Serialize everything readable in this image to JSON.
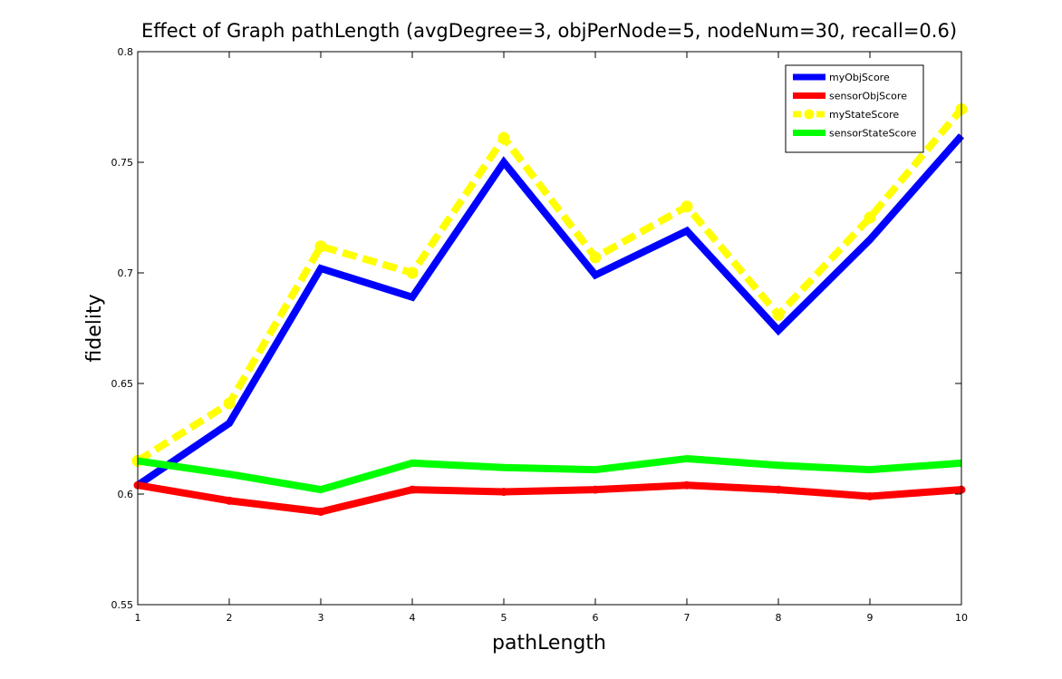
{
  "chart_data": {
    "type": "line",
    "title": "Effect of Graph pathLength (avgDegree=3, objPerNode=5, nodeNum=30, recall=0.6)",
    "xlabel": "pathLength",
    "ylabel": "fidelity",
    "x": [
      1,
      2,
      3,
      4,
      5,
      6,
      7,
      8,
      9,
      10
    ],
    "xlim": [
      1,
      10
    ],
    "ylim": [
      0.55,
      0.8
    ],
    "xticks": [
      1,
      2,
      3,
      4,
      5,
      6,
      7,
      8,
      9,
      10
    ],
    "xtick_labels": [
      "1",
      "2",
      "3",
      "4",
      "5",
      "6",
      "7",
      "8",
      "9",
      "10"
    ],
    "yticks": [
      0.55,
      0.6,
      0.65,
      0.7,
      0.75,
      0.8
    ],
    "ytick_labels": [
      "0.55",
      "0.6",
      "0.65",
      "0.7",
      "0.75",
      "0.8"
    ],
    "grid": false,
    "legend_position": "top-right",
    "series": [
      {
        "name": "myObjScore",
        "color": "#0000ff",
        "style": "solid",
        "marker": "none",
        "values": [
          0.604,
          0.632,
          0.702,
          0.689,
          0.75,
          0.699,
          0.719,
          0.674,
          0.715,
          0.762
        ]
      },
      {
        "name": "sensorObjScore",
        "color": "#ff0000",
        "style": "solid",
        "marker": "dot",
        "values": [
          0.604,
          0.597,
          0.592,
          0.602,
          0.601,
          0.602,
          0.604,
          0.602,
          0.599,
          0.602
        ]
      },
      {
        "name": "myStateScore",
        "color": "#ffff00",
        "style": "dashed",
        "marker": "circle",
        "values": [
          0.615,
          0.641,
          0.712,
          0.7,
          0.761,
          0.707,
          0.73,
          0.681,
          0.725,
          0.774
        ]
      },
      {
        "name": "sensorStateScore",
        "color": "#00ff00",
        "style": "solid",
        "marker": "none",
        "values": [
          0.615,
          0.609,
          0.602,
          0.614,
          0.612,
          0.611,
          0.616,
          0.613,
          0.611,
          0.614
        ]
      }
    ]
  }
}
